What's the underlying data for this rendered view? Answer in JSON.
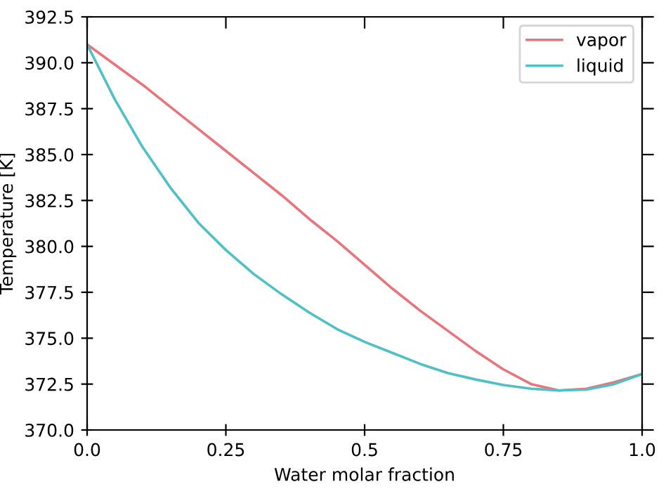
{
  "chart_data": {
    "type": "line",
    "xlabel": "Water molar fraction",
    "ylabel": "Temperature [K]",
    "x": [
      0,
      0.05,
      0.1,
      0.15,
      0.2,
      0.25,
      0.3,
      0.35,
      0.4,
      0.45,
      0.5,
      0.55,
      0.6,
      0.65,
      0.7,
      0.75,
      0.8,
      0.85,
      0.9,
      0.95,
      1.0
    ],
    "series": [
      {
        "name": "vapor",
        "color": "#e8747c",
        "values": [
          391.0,
          389.9,
          388.8,
          387.6,
          386.4,
          385.2,
          384.0,
          382.8,
          381.5,
          380.3,
          379.0,
          377.7,
          376.5,
          375.4,
          374.3,
          373.3,
          372.5,
          372.15,
          372.25,
          372.6,
          373.05
        ]
      },
      {
        "name": "liquid",
        "color": "#4fc1c6",
        "values": [
          391.0,
          388.0,
          385.4,
          383.2,
          381.3,
          379.8,
          378.5,
          377.4,
          376.4,
          375.5,
          374.8,
          374.2,
          373.6,
          373.1,
          372.75,
          372.45,
          372.25,
          372.15,
          372.2,
          372.5,
          373.05
        ]
      }
    ],
    "xlim": [
      0,
      1
    ],
    "xticks": [
      {
        "value": 0,
        "label": "0.0"
      },
      0.25,
      0.5,
      0.75,
      {
        "value": 1,
        "label": "1.0"
      }
    ],
    "ylim": [
      370,
      392.5
    ],
    "yticks": [
      {
        "value": 370,
        "label": "370.0"
      },
      372.5,
      {
        "value": 375,
        "label": "375.0"
      },
      377.5,
      {
        "value": 380,
        "label": "380.0"
      },
      382.5,
      {
        "value": 385,
        "label": "385.0"
      },
      387.5,
      {
        "value": 390,
        "label": "390.0"
      },
      392.5
    ],
    "legend": "top right",
    "grid": false,
    "line_style": "solid",
    "marker": "none"
  }
}
